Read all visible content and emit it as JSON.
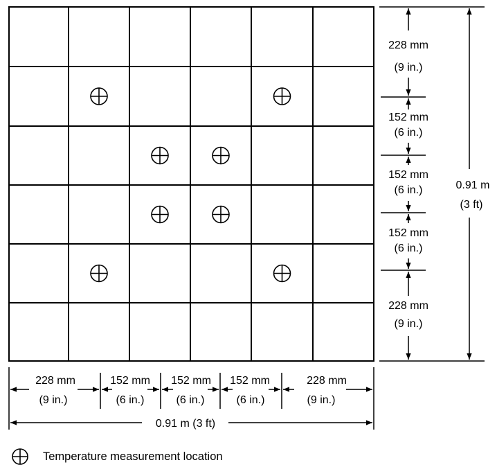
{
  "grid": {
    "rows": 6,
    "cols": 6
  },
  "measurement_points": [
    {
      "row": 1,
      "col": 1
    },
    {
      "row": 1,
      "col": 4
    },
    {
      "row": 2,
      "col": 2
    },
    {
      "row": 2,
      "col": 3
    },
    {
      "row": 3,
      "col": 2
    },
    {
      "row": 3,
      "col": 3
    },
    {
      "row": 4,
      "col": 1
    },
    {
      "row": 4,
      "col": 4
    }
  ],
  "vertical_dims": [
    {
      "mm": "228 mm",
      "in": "(9 in.)"
    },
    {
      "mm": "152 mm",
      "in": "(6 in.)"
    },
    {
      "mm": "152 mm",
      "in": "(6 in.)"
    },
    {
      "mm": "152 mm",
      "in": "(6 in.)"
    },
    {
      "mm": "228 mm",
      "in": "(9 in.)"
    }
  ],
  "horizontal_dims": [
    {
      "mm": "228 mm",
      "in": "(9 in.)"
    },
    {
      "mm": "152 mm",
      "in": "(6 in.)"
    },
    {
      "mm": "152 mm",
      "in": "(6 in.)"
    },
    {
      "mm": "152 mm",
      "in": "(6 in.)"
    },
    {
      "mm": "228 mm",
      "in": "(9 in.)"
    }
  ],
  "overall_height": {
    "metric": "0.91 m",
    "imperial": "(3 ft)"
  },
  "overall_width": {
    "label": "0.91 m (3 ft)"
  },
  "legend": {
    "label": "Temperature measurement location",
    "icon": "crosshair-circle-icon"
  }
}
